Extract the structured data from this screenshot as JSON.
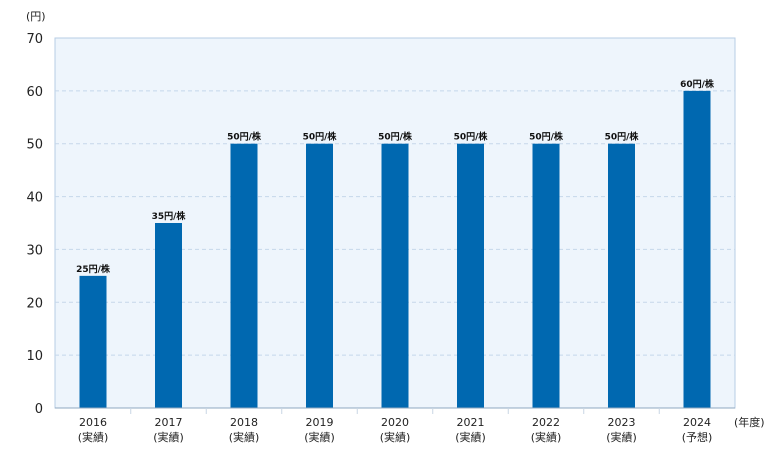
{
  "chart_data": {
    "type": "bar",
    "y_unit_label": "(円)",
    "x_unit_label": "(年度)",
    "ylim": [
      0,
      70
    ],
    "yticks": [
      "0",
      "10",
      "20",
      "30",
      "40",
      "50",
      "60",
      "70"
    ],
    "grid": true,
    "categories": [
      {
        "year": "2016",
        "status": "(実績)"
      },
      {
        "year": "2017",
        "status": "(実績)"
      },
      {
        "year": "2018",
        "status": "(実績)"
      },
      {
        "year": "2019",
        "status": "(実績)"
      },
      {
        "year": "2020",
        "status": "(実績)"
      },
      {
        "year": "2021",
        "status": "(実績)"
      },
      {
        "year": "2022",
        "status": "(実績)"
      },
      {
        "year": "2023",
        "status": "(実績)"
      },
      {
        "year": "2024",
        "status": "(予想)"
      }
    ],
    "values": [
      25,
      35,
      50,
      50,
      50,
      50,
      50,
      50,
      60
    ],
    "data_labels": [
      "25円/株",
      "35円/株",
      "50円/株",
      "50円/株",
      "50円/株",
      "50円/株",
      "50円/株",
      "50円/株",
      "60円/株"
    ],
    "colors": {
      "bar": "#0068b0",
      "plot_bg": "#eef5fc",
      "grid": "#c5d7ea",
      "frame": "#b7cde4"
    }
  }
}
